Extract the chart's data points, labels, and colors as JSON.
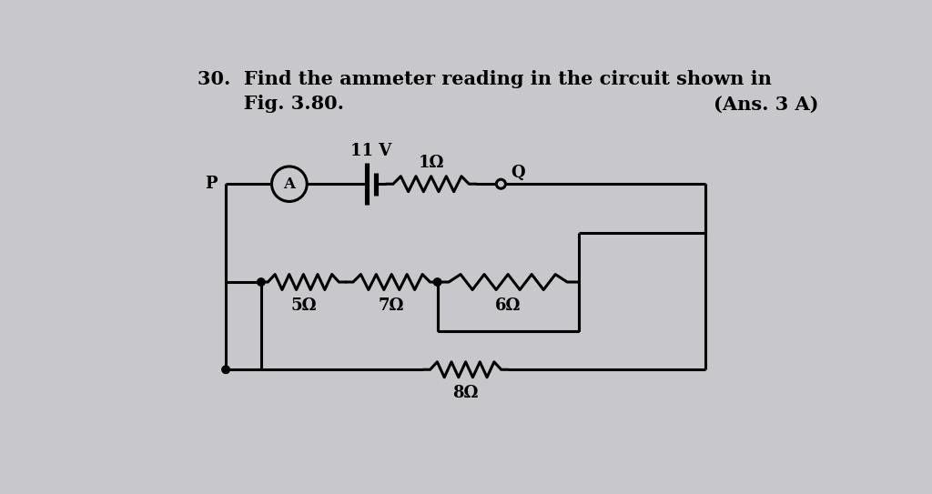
{
  "bg_color": "#c8c8cc",
  "text_color": "#000000",
  "fig_width": 10.24,
  "fig_height": 5.43,
  "ammeter_label": "A",
  "battery_voltage": "11 V",
  "R1": "1Ω",
  "R2": "5Ω",
  "R3": "7Ω",
  "R4": "6Ω",
  "R5": "8Ω",
  "node_P": "P",
  "node_Q": "Q",
  "title1": "30.  Find the ammeter reading in the circuit shown in",
  "title2": "       Fig. 3.80.",
  "ans": "(Ans. 3 A)",
  "lw": 2.2,
  "ammeter_r": 0.25,
  "resistor_amp": 0.11,
  "dot_r": 0.055,
  "open_dot_r": 0.065,
  "label_fs": 13,
  "title_fs": 15
}
